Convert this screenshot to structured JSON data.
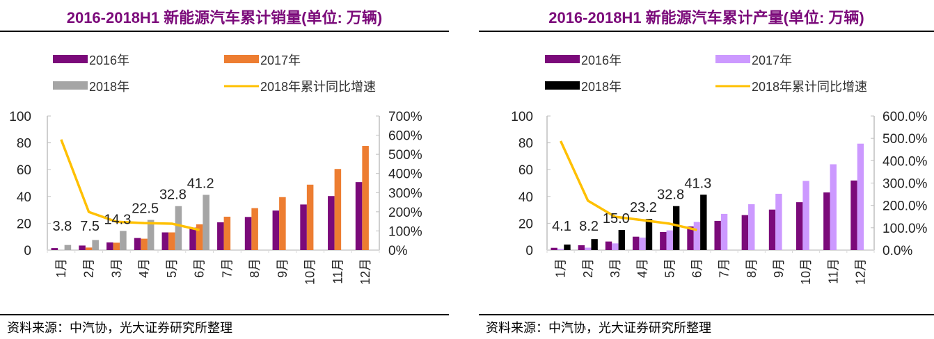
{
  "chart_data": [
    {
      "type": "bar",
      "title": "2016-2018H1 新能源汽车累计销量(单位: 万辆)",
      "source": "资料来源：中汽协，光大证券研究所整理",
      "categories": [
        "1月",
        "2月",
        "3月",
        "4月",
        "5月",
        "6月",
        "7月",
        "8月",
        "9月",
        "10月",
        "11月",
        "12月"
      ],
      "series": [
        {
          "name": "2016年",
          "kind": "bar",
          "axis": "left",
          "color": "#7b0a7a",
          "values": [
            1.5,
            3.4,
            5.7,
            9.0,
            13.2,
            16.8,
            20.7,
            24.7,
            29.5,
            34.0,
            40.3,
            50.7
          ]
        },
        {
          "name": "2017年",
          "kind": "bar",
          "axis": "left",
          "color": "#ed7d31",
          "values": [
            0.0,
            1.9,
            5.5,
            8.5,
            13.2,
            19.2,
            24.9,
            31.3,
            39.5,
            48.8,
            60.5,
            77.7
          ]
        },
        {
          "name": "2018年",
          "kind": "bar",
          "axis": "left",
          "color": "#a5a5a5",
          "values": [
            3.8,
            7.5,
            14.3,
            22.5,
            32.8,
            41.2,
            null,
            null,
            null,
            null,
            null,
            null
          ],
          "labels": [
            "3.8",
            "7.5",
            "14.3",
            "22.5",
            "32.8",
            "41.2"
          ]
        },
        {
          "name": "2018年累计同比增速",
          "kind": "line",
          "axis": "right",
          "color": "#ffc000",
          "values": [
            577,
            199,
            148,
            141,
            138,
            105,
            null,
            null,
            null,
            null,
            null,
            null
          ]
        }
      ],
      "legend": [
        "2016年",
        "2017年",
        "2018年",
        "2018年累计同比增速"
      ],
      "legend_position": "top",
      "ylim": [
        0,
        100
      ],
      "yticks": [
        "0",
        "20",
        "40",
        "60",
        "80",
        "100"
      ],
      "y2lim": [
        0,
        700
      ],
      "y2ticks": [
        "0%",
        "100%",
        "200%",
        "300%",
        "400%",
        "500%",
        "600%",
        "700%"
      ],
      "xlabel": "",
      "ylabel": ""
    },
    {
      "type": "bar",
      "title": "2016-2018H1 新能源汽车累计产量(单位: 万辆)",
      "source": "资料来源：中汽协，光大证券研究所整理",
      "categories": [
        "1月",
        "2月",
        "3月",
        "4月",
        "5月",
        "6月",
        "7月",
        "8月",
        "9月",
        "10月",
        "11月",
        "12月"
      ],
      "series": [
        {
          "name": "2016年",
          "kind": "bar",
          "axis": "left",
          "color": "#7b0a7a",
          "values": [
            1.7,
            3.6,
            6.4,
            10.0,
            13.5,
            17.6,
            21.8,
            26.1,
            30.2,
            35.7,
            43.0,
            51.9
          ]
        },
        {
          "name": "2017年",
          "kind": "bar",
          "axis": "left",
          "color": "#cc99ff",
          "values": [
            0.9,
            1.8,
            5.0,
            9.3,
            14.7,
            21.0,
            27.0,
            34.2,
            42.0,
            51.6,
            64.0,
            79.4
          ]
        },
        {
          "name": "2018年",
          "kind": "bar",
          "axis": "left",
          "color": "#000000",
          "values": [
            4.1,
            8.2,
            15.0,
            23.2,
            32.8,
            41.3,
            null,
            null,
            null,
            null,
            null,
            null
          ],
          "labels": [
            "4.1",
            "8.2",
            "15.0",
            "23.2",
            "32.8",
            "41.3"
          ]
        },
        {
          "name": "2018年累计同比增速",
          "kind": "line",
          "axis": "right",
          "color": "#ffc000",
          "values": [
            488,
            221,
            149,
            134,
            118,
            90,
            null,
            null,
            null,
            null,
            null,
            null
          ]
        }
      ],
      "legend": [
        "2016年",
        "2017年",
        "2018年",
        "2018年累计同比增速"
      ],
      "legend_position": "top",
      "ylim": [
        0,
        100
      ],
      "yticks": [
        "0",
        "20",
        "40",
        "60",
        "80",
        "100"
      ],
      "y2lim": [
        0,
        600
      ],
      "y2ticks": [
        "0.0%",
        "100.0%",
        "200.0%",
        "300.0%",
        "400.0%",
        "500.0%",
        "600.0%"
      ],
      "xlabel": "",
      "ylabel": ""
    }
  ]
}
